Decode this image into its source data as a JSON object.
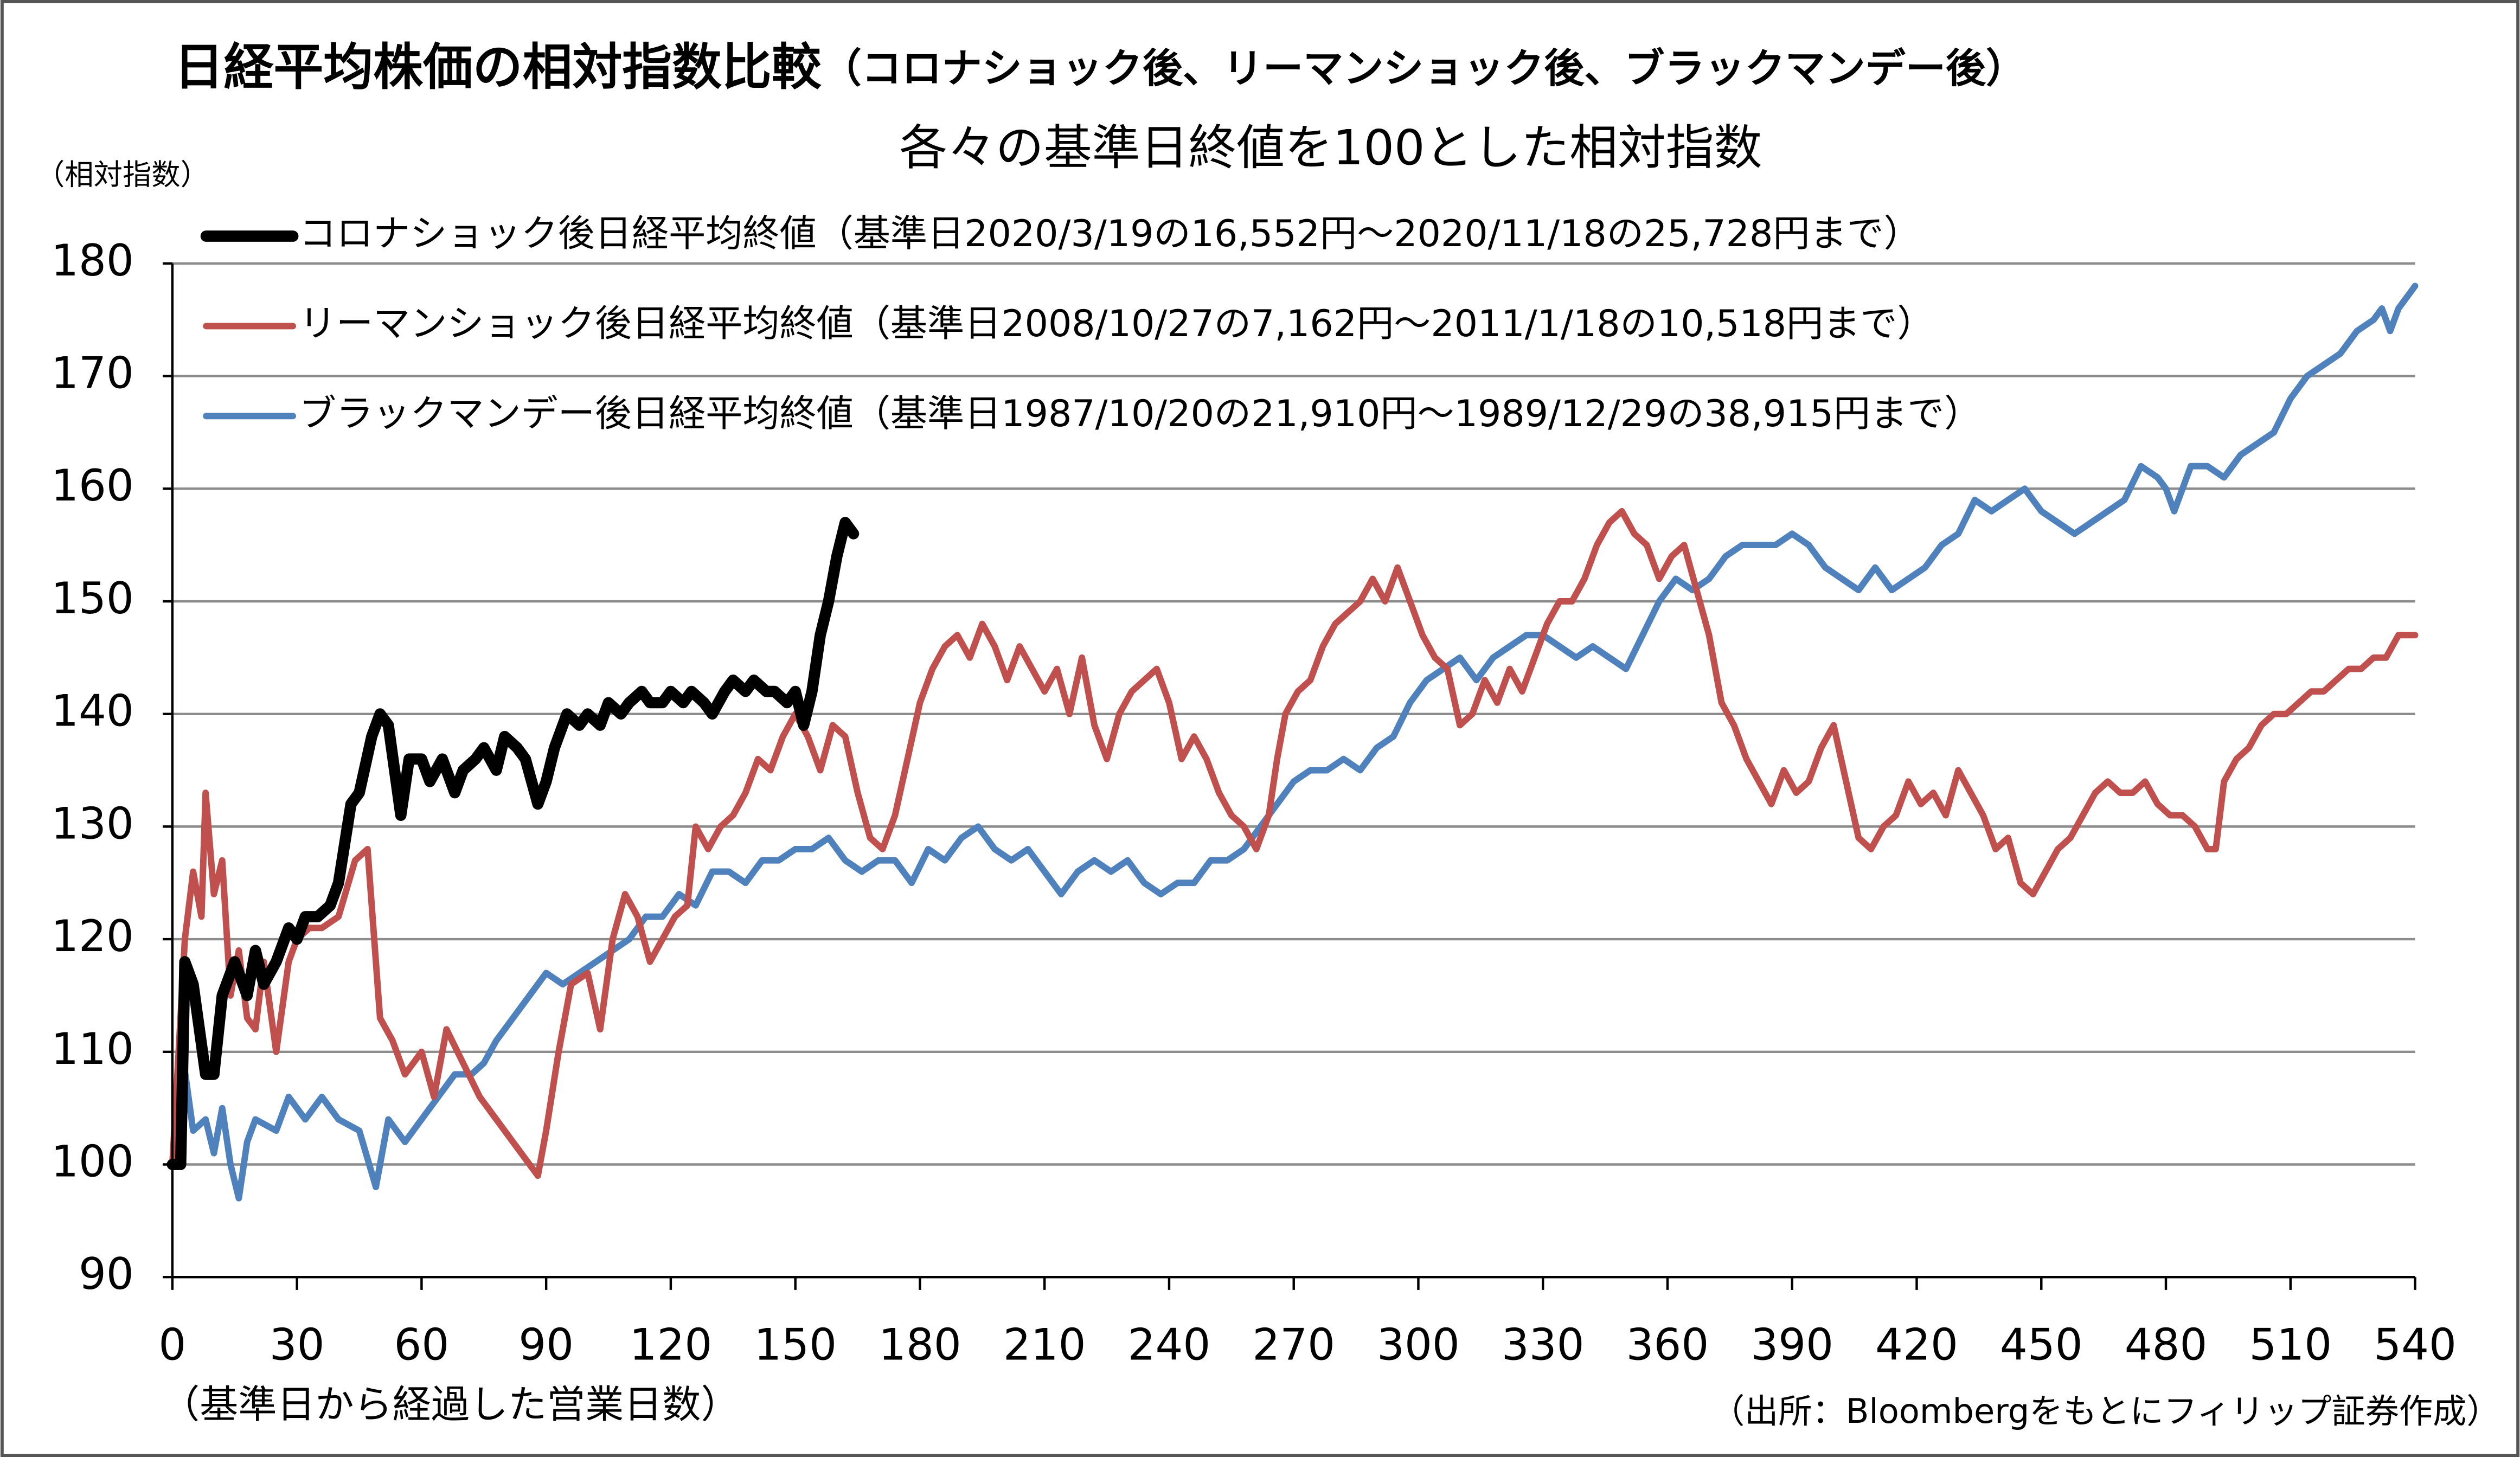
{
  "chart_data": {
    "type": "line",
    "title": "日経平均株価の相対指数比較",
    "title_paren": "（コロナショック後、リーマンショック後、ブラックマンデー後）",
    "subtitle": "各々の基準日終値を100とした相対指数",
    "y_label": "（相対指数）",
    "x_label": "（基準日から経過した営業日数）",
    "source": "（出所：Bloombergをもとにフィリップ証券作成）",
    "xlim": [
      0,
      540
    ],
    "xticks": [
      0,
      30,
      60,
      90,
      120,
      150,
      180,
      210,
      240,
      270,
      300,
      330,
      360,
      390,
      420,
      450,
      480,
      510,
      540
    ],
    "ylim": [
      90,
      180
    ],
    "yticks": [
      90,
      100,
      110,
      120,
      130,
      140,
      150,
      160,
      170,
      180
    ],
    "grid": true,
    "series": [
      {
        "name": "コロナショック後日経平均終値（基準日2020/3/19の16,552円～2020/11/18の25,728円まで）",
        "color": "#000000",
        "width": 7,
        "x": [
          0,
          2,
          3,
          5,
          8,
          10,
          12,
          15,
          18,
          20,
          22,
          25,
          28,
          30,
          32,
          35,
          38,
          40,
          43,
          45,
          48,
          50,
          52,
          55,
          57,
          60,
          62,
          65,
          68,
          70,
          73,
          75,
          78,
          80,
          83,
          85,
          88,
          90,
          92,
          95,
          98,
          100,
          103,
          105,
          108,
          110,
          113,
          115,
          118,
          120,
          123,
          125,
          128,
          130,
          133,
          135,
          138,
          140,
          143,
          145,
          148,
          150,
          152,
          154,
          156,
          158,
          160,
          162,
          164
        ],
        "values": [
          100,
          100,
          118,
          116,
          108,
          108,
          115,
          118,
          115,
          119,
          116,
          118,
          121,
          120,
          122,
          122,
          123,
          125,
          132,
          133,
          138,
          140,
          139,
          131,
          136,
          136,
          134,
          136,
          133,
          135,
          136,
          137,
          135,
          138,
          137,
          136,
          132,
          134,
          137,
          140,
          139,
          140,
          139,
          141,
          140,
          141,
          142,
          141,
          141,
          142,
          141,
          142,
          141,
          140,
          142,
          143,
          142,
          143,
          142,
          142,
          141,
          142,
          139,
          142,
          147,
          150,
          154,
          157,
          156
        ]
      },
      {
        "name": "リーマンショック後日経平均終値（基準日2008/10/27の7,162円～2011/1/18の10,518円まで）",
        "color": "#c0504d",
        "width": 4,
        "x": [
          0,
          3,
          5,
          7,
          8,
          10,
          12,
          14,
          16,
          18,
          20,
          22,
          25,
          28,
          30,
          33,
          36,
          40,
          44,
          47,
          50,
          53,
          56,
          60,
          63,
          66,
          70,
          74,
          78,
          82,
          86,
          88,
          90,
          93,
          96,
          100,
          103,
          106,
          109,
          112,
          115,
          118,
          121,
          124,
          126,
          129,
          132,
          135,
          138,
          141,
          144,
          147,
          150,
          153,
          156,
          159,
          162,
          165,
          168,
          171,
          174,
          177,
          180,
          183,
          186,
          189,
          192,
          195,
          198,
          201,
          204,
          207,
          210,
          213,
          216,
          219,
          222,
          225,
          228,
          231,
          234,
          237,
          240,
          243,
          246,
          249,
          252,
          255,
          258,
          261,
          264,
          266,
          268,
          271,
          274,
          277,
          280,
          283,
          286,
          289,
          292,
          295,
          298,
          301,
          304,
          307,
          310,
          313,
          316,
          319,
          322,
          325,
          328,
          331,
          334,
          337,
          340,
          343,
          346,
          349,
          352,
          355,
          358,
          361,
          364,
          367,
          370,
          373,
          376,
          379,
          382,
          385,
          388,
          391,
          394,
          397,
          400,
          403,
          406,
          409,
          412,
          415,
          418,
          421,
          424,
          427,
          430,
          433,
          436,
          439,
          442,
          445,
          448,
          451,
          454,
          457,
          460,
          463,
          466,
          469,
          472,
          475,
          478,
          481,
          484,
          487,
          490,
          492,
          494,
          497,
          500,
          503,
          506,
          509,
          512,
          515,
          518,
          521,
          524,
          527,
          530,
          533,
          536,
          538,
          540
        ],
        "values": [
          100,
          120,
          126,
          122,
          133,
          124,
          127,
          115,
          119,
          113,
          112,
          118,
          110,
          118,
          120,
          121,
          121,
          122,
          127,
          128,
          113,
          111,
          108,
          110,
          106,
          112,
          109,
          106,
          104,
          102,
          100,
          99,
          103,
          110,
          116,
          117,
          112,
          120,
          124,
          122,
          118,
          120,
          122,
          123,
          130,
          128,
          130,
          131,
          133,
          136,
          135,
          138,
          140,
          138,
          135,
          139,
          138,
          133,
          129,
          128,
          131,
          136,
          141,
          144,
          146,
          147,
          145,
          148,
          146,
          143,
          146,
          144,
          142,
          144,
          140,
          145,
          139,
          136,
          140,
          142,
          143,
          144,
          141,
          136,
          138,
          136,
          133,
          131,
          130,
          128,
          131,
          136,
          140,
          142,
          143,
          146,
          148,
          149,
          150,
          152,
          150,
          153,
          150,
          147,
          145,
          144,
          139,
          140,
          143,
          141,
          144,
          142,
          145,
          148,
          150,
          150,
          152,
          155,
          157,
          158,
          156,
          155,
          152,
          154,
          155,
          151,
          147,
          141,
          139,
          136,
          134,
          132,
          135,
          133,
          134,
          137,
          139,
          134,
          129,
          128,
          130,
          131,
          134,
          132,
          133,
          131,
          135,
          133,
          131,
          128,
          129,
          125,
          124,
          126,
          128,
          129,
          131,
          133,
          134,
          133,
          133,
          134,
          132,
          131,
          131,
          130,
          128,
          128,
          134,
          136,
          137,
          139,
          140,
          140,
          141,
          142,
          142,
          143,
          144,
          144,
          145,
          145,
          147,
          147,
          147
        ]
      },
      {
        "name": "ブラックマンデー後日経平均終値（基準日1987/10/20の21,910円～1989/12/29の38,915円まで）",
        "color": "#4f81bd",
        "width": 4,
        "x": [
          0,
          2,
          5,
          8,
          10,
          12,
          14,
          16,
          18,
          20,
          25,
          28,
          32,
          36,
          40,
          45,
          49,
          52,
          56,
          60,
          64,
          68,
          72,
          75,
          78,
          82,
          86,
          90,
          94,
          98,
          102,
          106,
          110,
          114,
          118,
          122,
          126,
          130,
          134,
          138,
          142,
          146,
          150,
          154,
          158,
          162,
          166,
          170,
          174,
          178,
          182,
          186,
          190,
          194,
          198,
          202,
          206,
          210,
          214,
          218,
          222,
          226,
          230,
          234,
          238,
          242,
          246,
          250,
          254,
          258,
          262,
          266,
          270,
          274,
          278,
          282,
          286,
          290,
          294,
          298,
          302,
          306,
          310,
          314,
          318,
          322,
          326,
          330,
          334,
          338,
          342,
          346,
          350,
          354,
          358,
          362,
          366,
          370,
          374,
          378,
          382,
          386,
          390,
          394,
          398,
          402,
          406,
          410,
          414,
          418,
          422,
          426,
          430,
          434,
          438,
          442,
          446,
          450,
          454,
          458,
          462,
          466,
          470,
          474,
          478,
          480,
          482,
          486,
          490,
          494,
          498,
          502,
          506,
          510,
          514,
          518,
          522,
          526,
          530,
          532,
          534,
          536,
          538,
          540
        ],
        "values": [
          100,
          111,
          103,
          104,
          101,
          105,
          100,
          97,
          102,
          104,
          103,
          106,
          104,
          106,
          104,
          103,
          98,
          104,
          102,
          104,
          106,
          108,
          108,
          109,
          111,
          113,
          115,
          117,
          116,
          117,
          118,
          119,
          120,
          122,
          122,
          124,
          123,
          126,
          126,
          125,
          127,
          127,
          128,
          128,
          129,
          127,
          126,
          127,
          127,
          125,
          128,
          127,
          129,
          130,
          128,
          127,
          128,
          126,
          124,
          126,
          127,
          126,
          127,
          125,
          124,
          125,
          125,
          127,
          127,
          128,
          130,
          132,
          134,
          135,
          135,
          136,
          135,
          137,
          138,
          141,
          143,
          144,
          145,
          143,
          145,
          146,
          147,
          147,
          146,
          145,
          146,
          145,
          144,
          147,
          150,
          152,
          151,
          152,
          154,
          155,
          155,
          155,
          156,
          155,
          153,
          152,
          151,
          153,
          151,
          152,
          153,
          155,
          156,
          159,
          158,
          159,
          160,
          158,
          157,
          156,
          157,
          158,
          159,
          162,
          161,
          160,
          158,
          162,
          162,
          161,
          163,
          164,
          165,
          168,
          170,
          171,
          172,
          174,
          175,
          176,
          174,
          176,
          177,
          178
        ]
      }
    ]
  }
}
